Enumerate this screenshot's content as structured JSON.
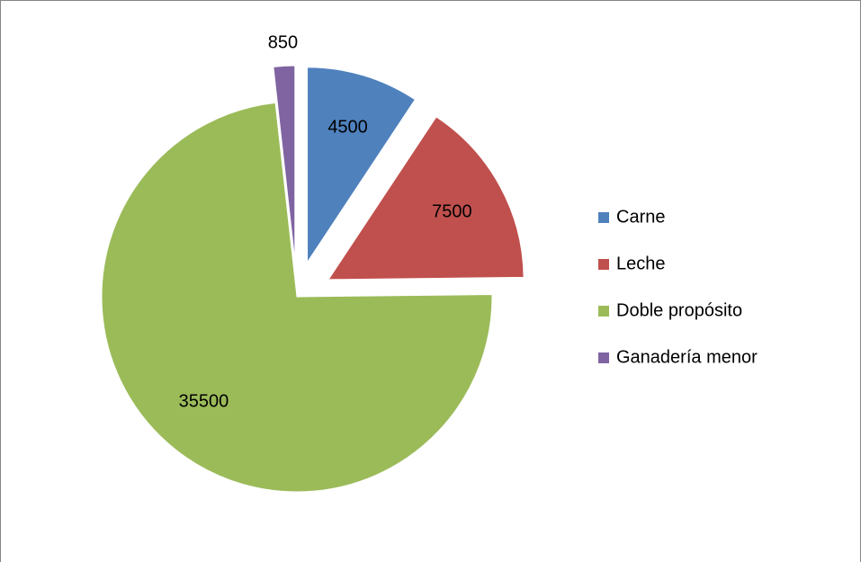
{
  "chart_data": {
    "type": "pie",
    "categories": [
      "Carne",
      "Leche",
      "Doble propósito",
      "Ganadería menor"
    ],
    "values": [
      4500,
      7500,
      35500,
      850
    ],
    "colors": [
      "#4f81bd",
      "#c0504d",
      "#9bbb59",
      "#8064a2"
    ],
    "exploded": [
      true,
      true,
      false,
      true
    ],
    "legend": "right"
  }
}
